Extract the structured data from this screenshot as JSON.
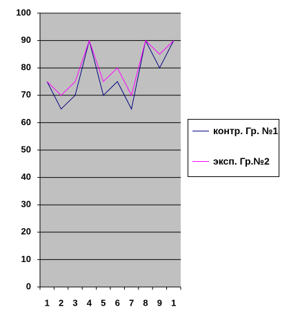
{
  "chart_data": {
    "type": "line",
    "categories": [
      "1",
      "2",
      "3",
      "4",
      "5",
      "6",
      "7",
      "8",
      "9",
      "1"
    ],
    "series": [
      {
        "name": "контр. Гр. №1",
        "color": "#000080",
        "values": [
          75,
          65,
          70,
          90,
          70,
          75,
          65,
          90,
          80,
          90
        ]
      },
      {
        "name": "эксп. Гр.№2",
        "color": "#ff00ff",
        "values": [
          75,
          70,
          75,
          90,
          75,
          80,
          70,
          90,
          85,
          90
        ]
      }
    ],
    "ylim": [
      0,
      100
    ],
    "yticks": [
      0,
      10,
      20,
      30,
      40,
      50,
      60,
      70,
      80,
      90,
      100
    ],
    "grid": true,
    "plot_background": "#c0c0c0",
    "legend": "right"
  }
}
